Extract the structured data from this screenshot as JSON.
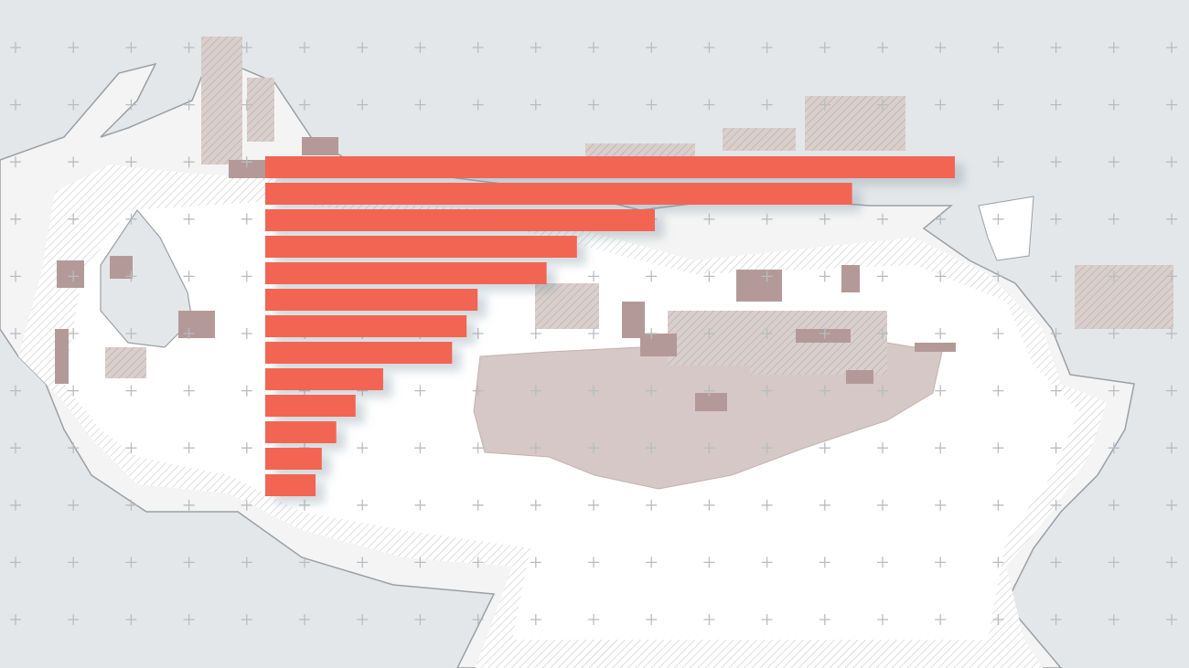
{
  "chart_data": {
    "type": "bar",
    "orientation": "horizontal",
    "color": "#f26552",
    "values": [
      100,
      85.1,
      56.5,
      45.2,
      40.8,
      30.8,
      29.2,
      27.1,
      17.1,
      13.1,
      10.3,
      8.2,
      7.3
    ],
    "xlim": [
      0,
      100
    ]
  }
}
